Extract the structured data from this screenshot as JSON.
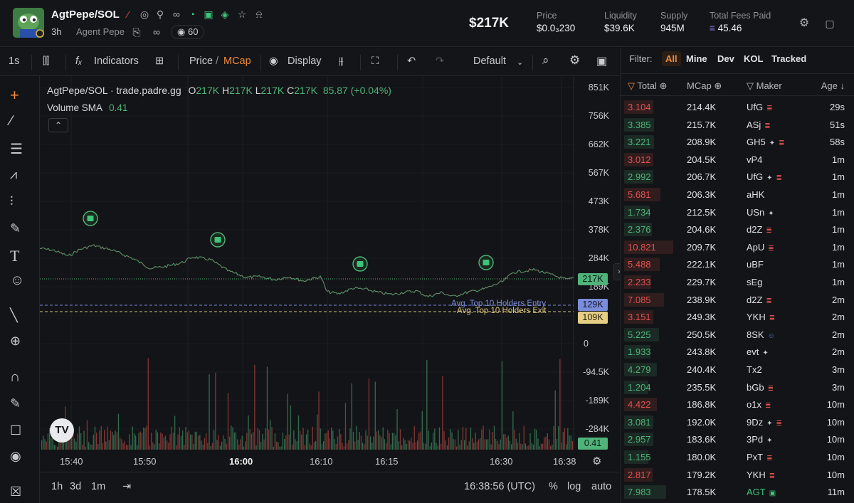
{
  "header": {
    "pair": "AgtPepe/SOL",
    "age": "3h",
    "alias": "Agent Pepe",
    "viewers": "60",
    "market_cap_display": "$217K",
    "stats": [
      {
        "label": "Price",
        "value": "$0.0₃230"
      },
      {
        "label": "Liquidity",
        "value": "$39.6K"
      },
      {
        "label": "Supply",
        "value": "945M"
      },
      {
        "label": "Total Fees Paid",
        "value": "45.46"
      }
    ],
    "icons": [
      "pump-icon",
      "globe-icon",
      "search-icon",
      "link-icon",
      "chart-pie-icon",
      "bot-icon",
      "bot-alt-icon",
      "star-icon",
      "bell-icon"
    ]
  },
  "toolbar": {
    "interval": "1s",
    "indicators_label": "Indicators",
    "price_label": "Price",
    "slash": "/",
    "mcap_label": "MCap",
    "display_label": "Display",
    "layout_label": "Default"
  },
  "chart": {
    "legend_title": "AgtPepe/SOL · trade.padre.gg",
    "ohlc": {
      "o_label": "O",
      "o": "217K",
      "h_label": "H",
      "h": "217K",
      "l_label": "L",
      "l": "217K",
      "c_label": "C",
      "c": "217K",
      "change": "85.87 (+0.04%)"
    },
    "volume_label": "Volume SMA",
    "volume_value": "0.41",
    "y_labels": [
      "851K",
      "756K",
      "662K",
      "567K",
      "473K",
      "378K",
      "284K",
      "189K",
      "0",
      "-94.5K",
      "-189K",
      "-284K"
    ],
    "current_tag": "217K",
    "entry_tag": "129K",
    "exit_tag": "109K",
    "volume_tag": "0.41",
    "entry_label": "Avg. Top 10 Holders Entry",
    "exit_label": "Avg. Top 10 Holders Exit",
    "x_labels": [
      "15:40",
      "15:50",
      "16:00",
      "16:10",
      "16:15",
      "16:30",
      "16:38"
    ],
    "colors": {
      "up": "#4fb37a",
      "down": "#e0524f",
      "entry": "#7b8cdb",
      "exit": "#d8c27a"
    }
  },
  "bottom": {
    "ranges": [
      "1h",
      "3d",
      "1m"
    ],
    "clock": "16:38:56 (UTC)",
    "pct": "%",
    "log": "log",
    "auto": "auto"
  },
  "panel": {
    "filter_label": "Filter:",
    "filters": [
      "All",
      "Mine",
      "Dev",
      "KOL",
      "Tracked"
    ],
    "columns": [
      "Total",
      "MCap",
      "Maker",
      "Age"
    ],
    "rows": [
      {
        "amount": "3.104",
        "side": "sell",
        "mcap": "214.4K",
        "maker": "UfG",
        "tag": "layers",
        "age": "29s"
      },
      {
        "amount": "3.385",
        "side": "buy",
        "mcap": "215.7K",
        "maker": "ASj",
        "tag": "layers",
        "age": "51s"
      },
      {
        "amount": "3.221",
        "side": "buy",
        "mcap": "208.9K",
        "maker": "GH5",
        "tag": "sparkle-layers",
        "age": "58s"
      },
      {
        "amount": "3.012",
        "side": "sell",
        "mcap": "204.5K",
        "maker": "vP4",
        "tag": "",
        "age": "1m"
      },
      {
        "amount": "2.992",
        "side": "buy",
        "mcap": "206.7K",
        "maker": "UfG",
        "tag": "sparkle-layers",
        "age": "1m"
      },
      {
        "amount": "5.681",
        "side": "sell",
        "mcap": "206.3K",
        "maker": "aHK",
        "tag": "",
        "age": "1m"
      },
      {
        "amount": "1.734",
        "side": "buy",
        "mcap": "212.5K",
        "maker": "USn",
        "tag": "sparkle",
        "age": "1m"
      },
      {
        "amount": "2.376",
        "side": "buy",
        "mcap": "204.6K",
        "maker": "d2Z",
        "tag": "layers",
        "age": "1m"
      },
      {
        "amount": "10.821",
        "side": "sell",
        "mcap": "209.7K",
        "maker": "ApU",
        "tag": "layers",
        "age": "1m"
      },
      {
        "amount": "5.488",
        "side": "sell",
        "mcap": "222.1K",
        "maker": "uBF",
        "tag": "",
        "age": "1m"
      },
      {
        "amount": "2.233",
        "side": "sell",
        "mcap": "229.7K",
        "maker": "sEg",
        "tag": "",
        "age": "1m"
      },
      {
        "amount": "7.085",
        "side": "sell",
        "mcap": "238.9K",
        "maker": "d2Z",
        "tag": "layers",
        "age": "2m"
      },
      {
        "amount": "3.151",
        "side": "sell",
        "mcap": "249.3K",
        "maker": "YKH",
        "tag": "layers",
        "age": "2m"
      },
      {
        "amount": "5.225",
        "side": "buy",
        "mcap": "250.5K",
        "maker": "8SK",
        "tag": "users",
        "age": "2m"
      },
      {
        "amount": "1.933",
        "side": "buy",
        "mcap": "243.8K",
        "maker": "evt",
        "tag": "sparkle",
        "age": "2m"
      },
      {
        "amount": "4.279",
        "side": "buy",
        "mcap": "240.4K",
        "maker": "Tx2",
        "tag": "",
        "age": "3m"
      },
      {
        "amount": "1.204",
        "side": "buy",
        "mcap": "235.5K",
        "maker": "bGb",
        "tag": "layers",
        "age": "3m"
      },
      {
        "amount": "4.422",
        "side": "sell",
        "mcap": "186.8K",
        "maker": "o1x",
        "tag": "layers",
        "age": "10m"
      },
      {
        "amount": "3.081",
        "side": "buy",
        "mcap": "192.0K",
        "maker": "9Dz",
        "tag": "sparkle-layers",
        "age": "10m"
      },
      {
        "amount": "2.957",
        "side": "buy",
        "mcap": "183.6K",
        "maker": "3Pd",
        "tag": "sparkle",
        "age": "10m"
      },
      {
        "amount": "1.155",
        "side": "buy",
        "mcap": "180.0K",
        "maker": "PxT",
        "tag": "layers",
        "age": "10m"
      },
      {
        "amount": "2.817",
        "side": "sell",
        "mcap": "179.2K",
        "maker": "YKH",
        "tag": "layers",
        "age": "10m"
      },
      {
        "amount": "7.983",
        "side": "buy",
        "mcap": "178.5K",
        "maker": "AGT",
        "tag": "bot",
        "age": "11m"
      }
    ]
  }
}
